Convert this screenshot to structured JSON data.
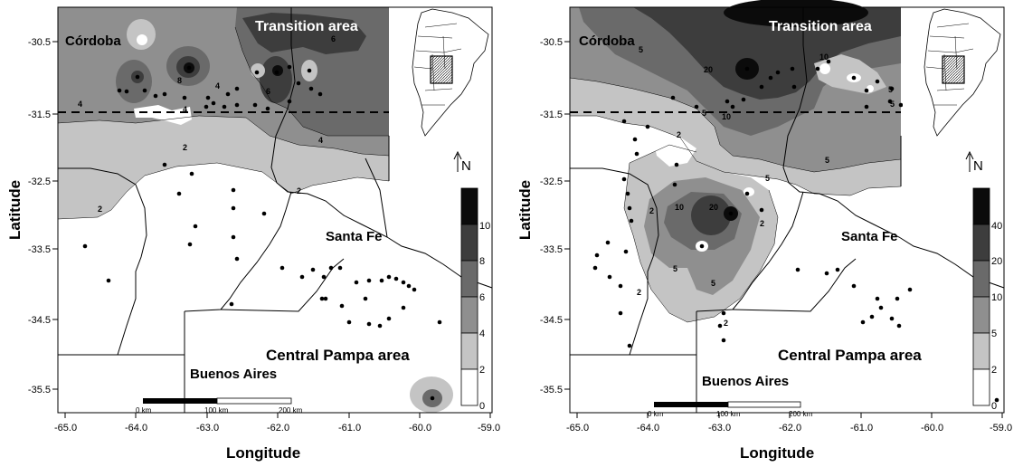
{
  "axis_labels": {
    "x": "Longitude",
    "y": "Latitude"
  },
  "x_ticks": [
    "-65.0",
    "-64.0",
    "-63.0",
    "-62.0",
    "-61.0",
    "-60.0",
    "-59.0"
  ],
  "y_ticks": [
    "-30.5",
    "-31.5",
    "-32.5",
    "-33.5",
    "-34.5",
    "-35.5"
  ],
  "x_ticks_left": [
    "-65.0",
    "-64.0",
    "-63.0",
    "-62.0",
    "-61.0",
    "-60.0",
    "-59.0"
  ],
  "y_ticks_left": [
    "-30.5",
    "-31.5",
    "-32.5",
    "-33.5",
    "-34.5",
    "-35.5"
  ],
  "region_labels": {
    "cordoba": "Córdoba",
    "transition": "Transition area",
    "santa_fe": "Santa Fe",
    "central_pampa": "Central Pampa area",
    "buenos_aires": "Buenos Aires"
  },
  "north_label": "N",
  "scale_bar": {
    "labels": [
      "0 km",
      "100 km",
      "200 km"
    ]
  },
  "left_map": {
    "legend_ticks": [
      "10",
      "8",
      "6",
      "4",
      "2",
      "0"
    ],
    "legend_colors": [
      "#0b0b0b",
      "#3d3d3d",
      "#6a6a6a",
      "#8f8f8f",
      "#c4c4c4",
      "#ffffff"
    ],
    "contour_labels": [
      "2",
      "2",
      "2",
      "4",
      "4",
      "4",
      "6",
      "8",
      "4",
      "6"
    ]
  },
  "right_map": {
    "legend_ticks": [
      "40",
      "20",
      "10",
      "5",
      "2",
      "0"
    ],
    "legend_colors": [
      "#0b0b0b",
      "#3d3d3d",
      "#6a6a6a",
      "#8f8f8f",
      "#c4c4c4",
      "#ffffff"
    ],
    "contour_labels": [
      "5",
      "20",
      "10",
      "5",
      "2",
      "2",
      "5",
      "10",
      "20",
      "5",
      "5",
      "2",
      "2",
      "5",
      "5",
      "10",
      "5",
      "2"
    ]
  }
}
